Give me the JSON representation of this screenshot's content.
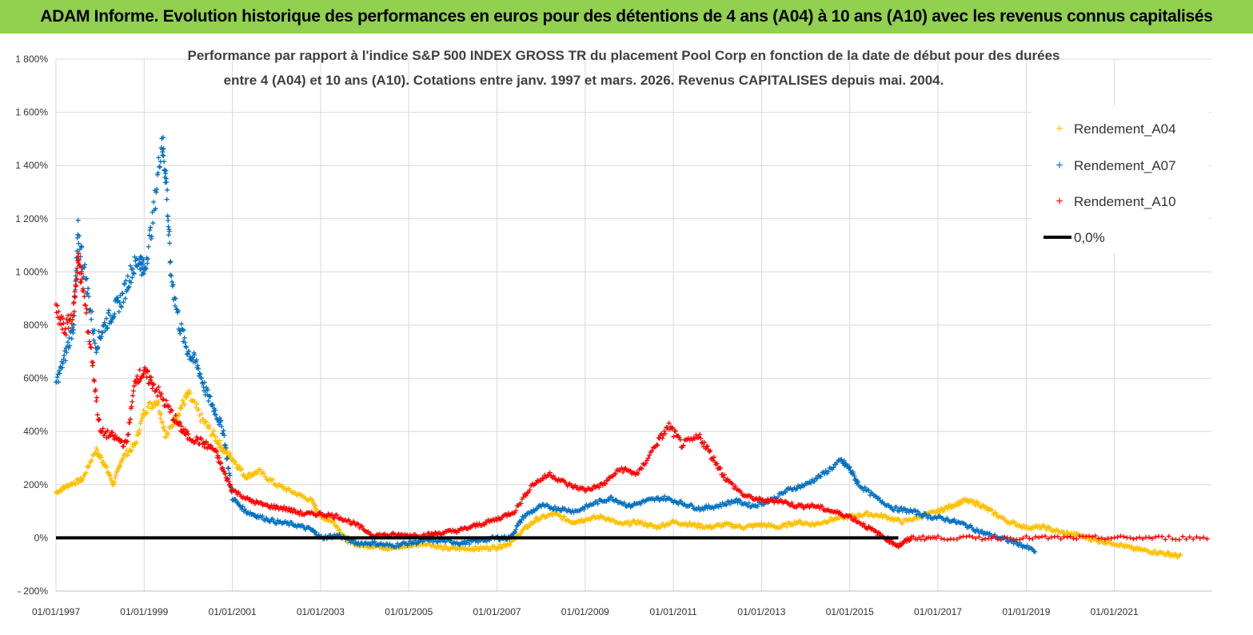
{
  "banner": {
    "title": "ADAM Informe. Evolution historique des performances en euros pour des détentions de 4 ans (A04) à 10 ans (A10) avec les revenus connus capitalisés"
  },
  "colors": {
    "banner_bg": "#92d050",
    "A04": "#ffc000",
    "A07": "#0070c0",
    "A10": "#ff0000",
    "zero_line": "#000000",
    "grid": "#d9d9d9"
  },
  "chart_data": {
    "type": "scatter",
    "title_line1": "Performance par rapport à l'indice S&P 500 INDEX GROSS TR  du placement Pool Corp en fonction de la date de début pour des durées",
    "title_line2": "entre 4 (A04) et 10 ans (A10). Cotations entre janv. 1997 et mars. 2026. Revenus CAPITALISES depuis mai. 2004.",
    "xlabel": "",
    "ylabel": "",
    "ylim": [
      -200,
      1800
    ],
    "xlim": [
      1997.0,
      2023.2
    ],
    "y_ticks": [
      -200,
      0,
      200,
      400,
      600,
      800,
      1000,
      1200,
      1400,
      1600,
      1800
    ],
    "y_tick_labels": [
      "- 200%",
      "0%",
      "200%",
      "400%",
      "600%",
      "800%",
      "1 000%",
      "1 200%",
      "1 400%",
      "1 600%",
      "1 800%"
    ],
    "x_ticks": [
      1997,
      1999,
      2001,
      2003,
      2005,
      2007,
      2009,
      2011,
      2013,
      2015,
      2017,
      2019,
      2021
    ],
    "x_tick_labels": [
      "01/01/1997",
      "01/01/1999",
      "01/01/2001",
      "01/01/2003",
      "01/01/2005",
      "01/01/2007",
      "01/01/2009",
      "01/01/2011",
      "01/01/2013",
      "01/01/2015",
      "01/01/2017",
      "01/01/2019",
      "01/01/2021"
    ],
    "legend_position": "right",
    "series": [
      {
        "name": "Rendement_A04",
        "marker": "+",
        "points": [
          [
            1997.0,
            170
          ],
          [
            1997.3,
            200
          ],
          [
            1997.6,
            220
          ],
          [
            1997.9,
            330
          ],
          [
            1998.1,
            280
          ],
          [
            1998.3,
            200
          ],
          [
            1998.5,
            300
          ],
          [
            1998.8,
            350
          ],
          [
            1999.0,
            480
          ],
          [
            1999.3,
            520
          ],
          [
            1999.5,
            380
          ],
          [
            1999.8,
            480
          ],
          [
            2000.0,
            540
          ],
          [
            2000.3,
            450
          ],
          [
            2000.6,
            380
          ],
          [
            2000.8,
            330
          ],
          [
            2001.0,
            300
          ],
          [
            2001.3,
            230
          ],
          [
            2001.6,
            250
          ],
          [
            2002.0,
            200
          ],
          [
            2002.4,
            170
          ],
          [
            2002.8,
            140
          ],
          [
            2003.0,
            80
          ],
          [
            2003.3,
            60
          ],
          [
            2003.6,
            -10
          ],
          [
            2003.9,
            -30
          ],
          [
            2004.3,
            -30
          ],
          [
            2004.6,
            -40
          ],
          [
            2005.0,
            -30
          ],
          [
            2005.4,
            -20
          ],
          [
            2005.8,
            -40
          ],
          [
            2006.2,
            -40
          ],
          [
            2006.6,
            -40
          ],
          [
            2007.0,
            -35
          ],
          [
            2007.3,
            -20
          ],
          [
            2007.6,
            30
          ],
          [
            2007.9,
            70
          ],
          [
            2008.3,
            90
          ],
          [
            2008.7,
            60
          ],
          [
            2009.0,
            70
          ],
          [
            2009.4,
            80
          ],
          [
            2009.8,
            50
          ],
          [
            2010.2,
            60
          ],
          [
            2010.6,
            40
          ],
          [
            2011.0,
            60
          ],
          [
            2011.4,
            50
          ],
          [
            2011.8,
            40
          ],
          [
            2012.2,
            50
          ],
          [
            2012.6,
            40
          ],
          [
            2013.0,
            50
          ],
          [
            2013.4,
            40
          ],
          [
            2013.8,
            60
          ],
          [
            2014.2,
            50
          ],
          [
            2014.6,
            70
          ],
          [
            2015.0,
            80
          ],
          [
            2015.4,
            90
          ],
          [
            2015.8,
            80
          ],
          [
            2016.2,
            60
          ],
          [
            2016.6,
            80
          ],
          [
            2017.0,
            100
          ],
          [
            2017.3,
            120
          ],
          [
            2017.6,
            140
          ],
          [
            2017.9,
            130
          ],
          [
            2018.2,
            100
          ],
          [
            2018.6,
            60
          ],
          [
            2019.0,
            40
          ],
          [
            2019.4,
            40
          ],
          [
            2019.8,
            20
          ],
          [
            2020.2,
            10
          ],
          [
            2020.6,
            -10
          ],
          [
            2021.0,
            -20
          ],
          [
            2021.4,
            -40
          ],
          [
            2021.8,
            -50
          ],
          [
            2022.2,
            -60
          ],
          [
            2022.5,
            -70
          ]
        ]
      },
      {
        "name": "Rendement_A07",
        "marker": "+",
        "points": [
          [
            1997.0,
            580
          ],
          [
            1997.2,
            680
          ],
          [
            1997.4,
            800
          ],
          [
            1997.5,
            1150
          ],
          [
            1997.7,
            950
          ],
          [
            1997.9,
            720
          ],
          [
            1998.1,
            800
          ],
          [
            1998.3,
            850
          ],
          [
            1998.5,
            900
          ],
          [
            1998.7,
            1000
          ],
          [
            1998.9,
            1050
          ],
          [
            1999.0,
            1000
          ],
          [
            1999.2,
            1200
          ],
          [
            1999.4,
            1500
          ],
          [
            1999.5,
            1350
          ],
          [
            1999.6,
            1000
          ],
          [
            1999.8,
            800
          ],
          [
            2000.0,
            700
          ],
          [
            2000.2,
            650
          ],
          [
            2000.4,
            550
          ],
          [
            2000.6,
            480
          ],
          [
            2000.8,
            400
          ],
          [
            2001.0,
            150
          ],
          [
            2001.3,
            100
          ],
          [
            2001.6,
            80
          ],
          [
            2002.0,
            60
          ],
          [
            2002.4,
            50
          ],
          [
            2002.8,
            30
          ],
          [
            2003.0,
            0
          ],
          [
            2003.4,
            10
          ],
          [
            2003.8,
            -20
          ],
          [
            2004.2,
            -20
          ],
          [
            2004.6,
            -30
          ],
          [
            2005.0,
            -20
          ],
          [
            2005.4,
            -10
          ],
          [
            2005.8,
            -10
          ],
          [
            2006.2,
            -20
          ],
          [
            2006.6,
            -10
          ],
          [
            2007.0,
            0
          ],
          [
            2007.3,
            0
          ],
          [
            2007.6,
            80
          ],
          [
            2008.0,
            120
          ],
          [
            2008.4,
            110
          ],
          [
            2008.8,
            100
          ],
          [
            2009.2,
            130
          ],
          [
            2009.6,
            150
          ],
          [
            2010.0,
            120
          ],
          [
            2010.4,
            140
          ],
          [
            2010.8,
            150
          ],
          [
            2011.2,
            130
          ],
          [
            2011.6,
            110
          ],
          [
            2012.0,
            120
          ],
          [
            2012.4,
            140
          ],
          [
            2012.8,
            120
          ],
          [
            2013.2,
            140
          ],
          [
            2013.6,
            180
          ],
          [
            2014.0,
            200
          ],
          [
            2014.4,
            240
          ],
          [
            2014.8,
            290
          ],
          [
            2015.0,
            260
          ],
          [
            2015.2,
            200
          ],
          [
            2015.6,
            150
          ],
          [
            2016.0,
            110
          ],
          [
            2016.4,
            100
          ],
          [
            2016.8,
            80
          ],
          [
            2017.2,
            70
          ],
          [
            2017.6,
            50
          ],
          [
            2018.0,
            20
          ],
          [
            2018.4,
            0
          ],
          [
            2018.8,
            -20
          ],
          [
            2019.2,
            -50
          ]
        ]
      },
      {
        "name": "Rendement_A10",
        "marker": "+",
        "points": [
          [
            1997.0,
            850
          ],
          [
            1997.2,
            780
          ],
          [
            1997.4,
            850
          ],
          [
            1997.5,
            1050
          ],
          [
            1997.6,
            950
          ],
          [
            1997.8,
            700
          ],
          [
            1998.0,
            400
          ],
          [
            1998.3,
            380
          ],
          [
            1998.6,
            350
          ],
          [
            1998.8,
            600
          ],
          [
            1999.0,
            620
          ],
          [
            1999.2,
            580
          ],
          [
            1999.5,
            500
          ],
          [
            1999.8,
            420
          ],
          [
            2000.0,
            380
          ],
          [
            2000.3,
            360
          ],
          [
            2000.6,
            330
          ],
          [
            2000.8,
            250
          ],
          [
            2001.0,
            180
          ],
          [
            2001.4,
            140
          ],
          [
            2001.8,
            120
          ],
          [
            2002.2,
            110
          ],
          [
            2002.6,
            90
          ],
          [
            2003.0,
            90
          ],
          [
            2003.4,
            80
          ],
          [
            2003.8,
            50
          ],
          [
            2004.2,
            10
          ],
          [
            2004.6,
            10
          ],
          [
            2005.0,
            10
          ],
          [
            2005.4,
            10
          ],
          [
            2005.8,
            20
          ],
          [
            2006.2,
            30
          ],
          [
            2006.6,
            50
          ],
          [
            2007.0,
            70
          ],
          [
            2007.4,
            100
          ],
          [
            2007.8,
            200
          ],
          [
            2008.2,
            240
          ],
          [
            2008.6,
            200
          ],
          [
            2009.0,
            180
          ],
          [
            2009.4,
            200
          ],
          [
            2009.8,
            260
          ],
          [
            2010.2,
            240
          ],
          [
            2010.6,
            350
          ],
          [
            2010.9,
            420
          ],
          [
            2011.2,
            350
          ],
          [
            2011.6,
            380
          ],
          [
            2011.9,
            300
          ],
          [
            2012.2,
            220
          ],
          [
            2012.6,
            160
          ],
          [
            2013.0,
            140
          ],
          [
            2013.4,
            140
          ],
          [
            2013.8,
            120
          ],
          [
            2014.2,
            120
          ],
          [
            2014.6,
            100
          ],
          [
            2015.0,
            80
          ],
          [
            2015.4,
            40
          ],
          [
            2015.8,
            0
          ],
          [
            2016.1,
            -30
          ],
          [
            2016.4,
            0
          ],
          [
            2017.0,
            0
          ],
          [
            2018.0,
            0
          ],
          [
            2019.0,
            0
          ],
          [
            2020.0,
            0
          ],
          [
            2021.0,
            0
          ],
          [
            2022.0,
            0
          ],
          [
            2023.1,
            0
          ]
        ]
      }
    ],
    "reference_line": {
      "name": "0,0%",
      "y": 0
    }
  }
}
